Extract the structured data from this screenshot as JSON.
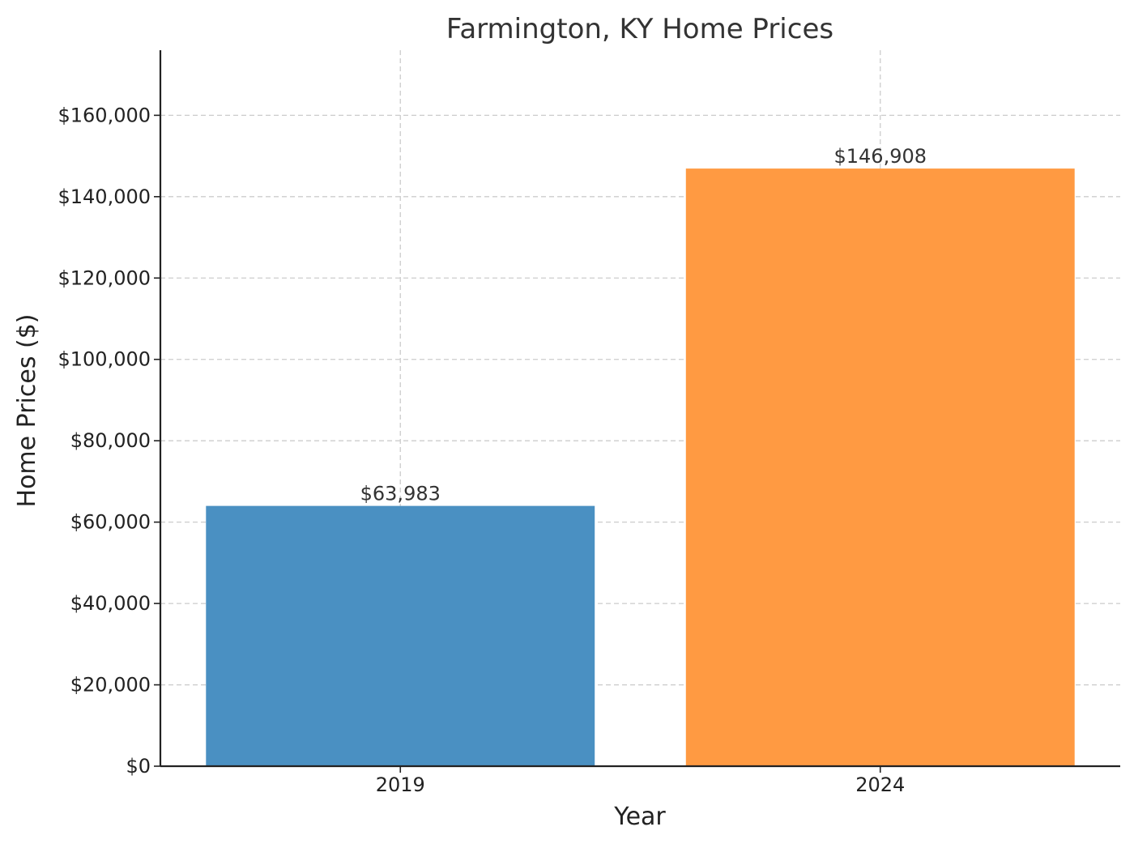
{
  "chart_data": {
    "type": "bar",
    "title": "Farmington, KY Home Prices",
    "xlabel": "Year",
    "ylabel": "Home Prices ($)",
    "categories": [
      "2019",
      "2024"
    ],
    "values": [
      63983,
      146908
    ],
    "value_labels": [
      "$63,983",
      "$146,908"
    ],
    "colors": [
      "#4a90c2",
      "#ff9a42"
    ],
    "ylim": [
      0,
      176000
    ],
    "yticks": [
      0,
      20000,
      40000,
      60000,
      80000,
      100000,
      120000,
      140000,
      160000
    ],
    "ytick_labels": [
      "$0",
      "$20,000",
      "$40,000",
      "$60,000",
      "$80,000",
      "$100,000",
      "$120,000",
      "$140,000",
      "$160,000"
    ],
    "grid": true
  }
}
